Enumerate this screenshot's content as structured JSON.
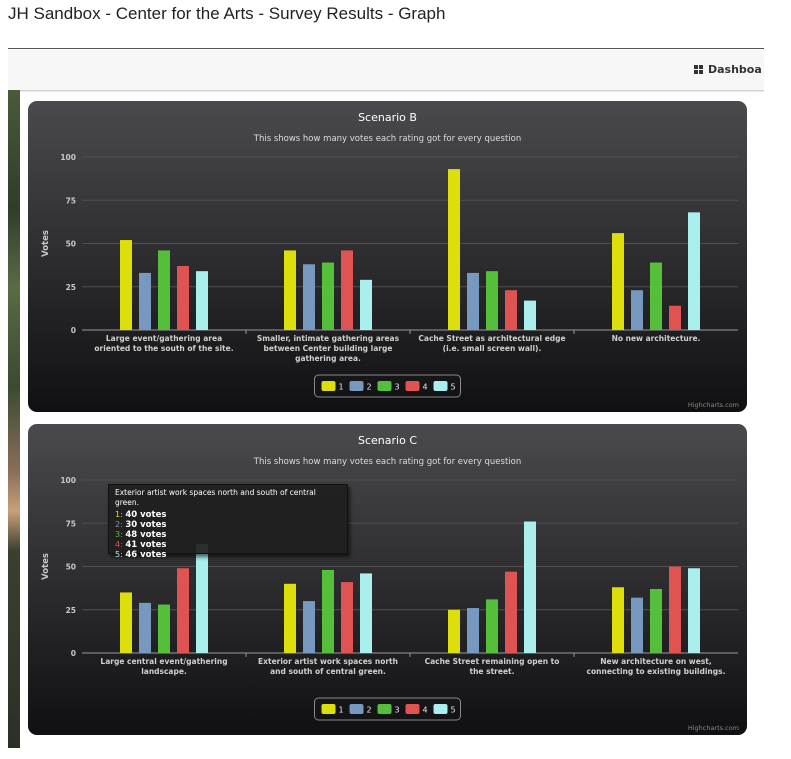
{
  "page": {
    "title": "JH Sandbox - Center for the Arts - Survey Results - Graph"
  },
  "topbar": {
    "dashboard_label": "Dashboa",
    "dashboard_icon": "grid-icon"
  },
  "legend_colors": [
    "#dddf0d",
    "#7798bf",
    "#55bf3b",
    "#df5353",
    "#aaeeee"
  ],
  "chart_data": [
    {
      "type": "bar",
      "title": "Scenario B",
      "subtitle": "This shows how many votes each rating got for every question",
      "ylabel": "Votes",
      "ylim": [
        0,
        100
      ],
      "yticks": [
        0,
        25,
        50,
        75,
        100
      ],
      "categories": [
        [
          "Large event/gathering area",
          "oriented to the south of the site."
        ],
        [
          "Smaller, intimate gathering areas",
          "between Center building large",
          "gathering area."
        ],
        [
          "Cache Street as architectural edge",
          "(i.e. small screen wall)."
        ],
        [
          "No new architecture."
        ]
      ],
      "series": [
        {
          "name": "1",
          "values": [
            52,
            46,
            93,
            56
          ]
        },
        {
          "name": "2",
          "values": [
            33,
            38,
            33,
            23
          ]
        },
        {
          "name": "3",
          "values": [
            46,
            39,
            34,
            39
          ]
        },
        {
          "name": "4",
          "values": [
            37,
            46,
            23,
            14
          ]
        },
        {
          "name": "5",
          "values": [
            34,
            29,
            17,
            68
          ]
        }
      ],
      "legend": "bottom-center",
      "credits": "Highcharts.com"
    },
    {
      "type": "bar",
      "title": "Scenario C",
      "subtitle": "This shows how many votes each rating got for every question",
      "ylabel": "Votes",
      "ylim": [
        0,
        100
      ],
      "yticks": [
        0,
        25,
        50,
        75,
        100
      ],
      "categories": [
        [
          "Large central event/gathering",
          "landscape."
        ],
        [
          "Exterior artist work spaces north",
          "and south of central green."
        ],
        [
          "Cache Street remaining open to",
          "the street."
        ],
        [
          "New architecture on west,",
          "connecting to existing buildings."
        ]
      ],
      "series": [
        {
          "name": "1",
          "values": [
            35,
            40,
            25,
            38
          ]
        },
        {
          "name": "2",
          "values": [
            29,
            30,
            26,
            32
          ]
        },
        {
          "name": "3",
          "values": [
            28,
            48,
            31,
            37
          ]
        },
        {
          "name": "4",
          "values": [
            49,
            41,
            47,
            50
          ]
        },
        {
          "name": "5",
          "values": [
            63,
            46,
            76,
            49
          ]
        }
      ],
      "legend": "bottom-center",
      "credits": "Highcharts.com",
      "tooltip": {
        "header": "Exterior artist work spaces north and south of central green.",
        "rows": [
          {
            "label": "1:",
            "value": "40 votes"
          },
          {
            "label": "2:",
            "value": "30 votes"
          },
          {
            "label": "3:",
            "value": "48 votes"
          },
          {
            "label": "4:",
            "value": "41 votes"
          },
          {
            "label": "5:",
            "value": "46 votes"
          }
        ]
      }
    }
  ]
}
